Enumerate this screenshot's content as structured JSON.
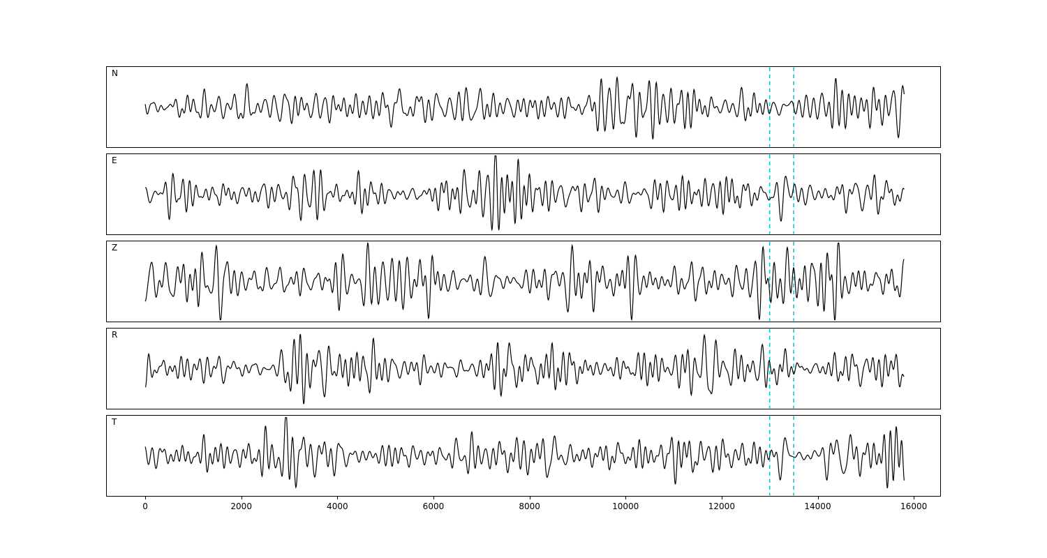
{
  "figure": {
    "background": "#ffffff",
    "axis_color": "#000000",
    "trace_color": "#000000",
    "marker_color": "#17c3cb"
  },
  "chart_data": {
    "type": "line",
    "title": "",
    "xlabel": "",
    "ylabel": "",
    "grid": false,
    "legend": false,
    "xlim": [
      -800,
      16550
    ],
    "x_data_range": [
      0,
      15800
    ],
    "x_ticks": [
      0,
      2000,
      4000,
      6000,
      8000,
      10000,
      12000,
      14000,
      16000
    ],
    "vlines": {
      "positions": [
        13000,
        13500
      ],
      "color": "#17c3cb",
      "style": "dashed"
    },
    "pulse": {
      "center": 13280,
      "width": 115,
      "period": 270
    },
    "panels": [
      {
        "label": "N",
        "seed": 101,
        "noise_amp": 1.0,
        "pulse_amp": 1.3
      },
      {
        "label": "E",
        "seed": 202,
        "noise_amp": 0.95,
        "pulse_amp": 3.2
      },
      {
        "label": "Z",
        "seed": 303,
        "noise_amp": 1.12,
        "pulse_amp": 2.0
      },
      {
        "label": "R",
        "seed": 404,
        "noise_amp": 0.98,
        "pulse_amp": 3.0
      },
      {
        "label": "T",
        "seed": 505,
        "noise_amp": 0.95,
        "pulse_amp": 2.7
      }
    ]
  }
}
